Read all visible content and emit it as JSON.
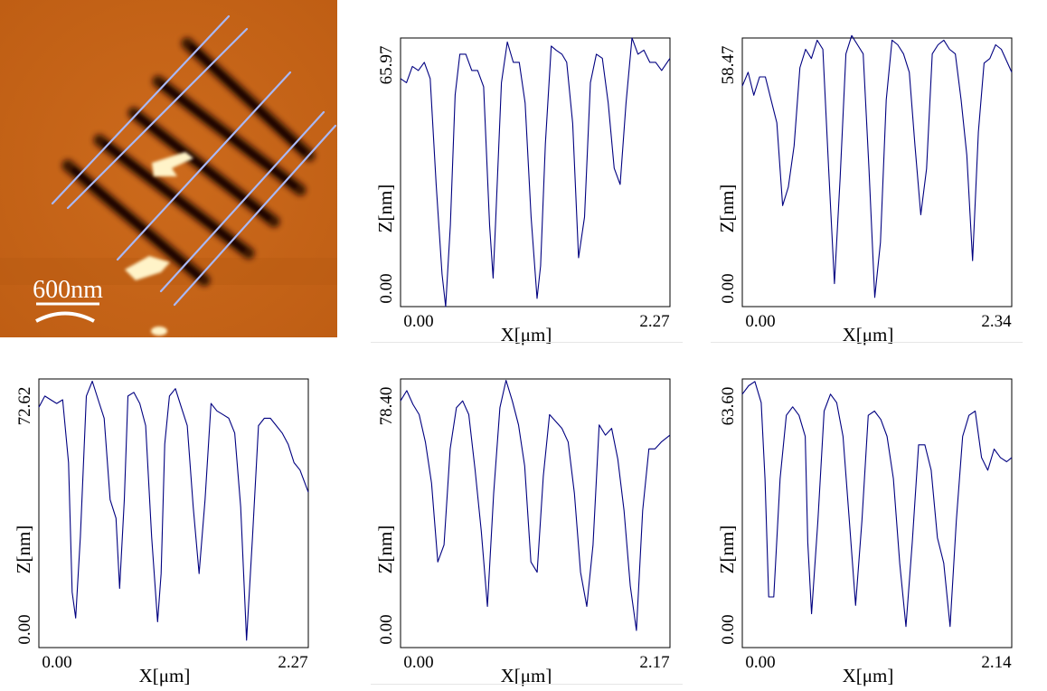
{
  "image": {
    "scale_bar_label": "600nm",
    "colors": {
      "substrate": "#c8641a",
      "trench": "#2a0a00",
      "particle": "#fff3c8",
      "scan_line": "#a9b8f5"
    }
  },
  "charts_style": {
    "line_color": "#000080",
    "frame_color": "#000000"
  },
  "chart_data": [
    {
      "type": "line",
      "title": "",
      "xlabel": "X[μm]",
      "ylabel": "Z[nm]",
      "xlim": [
        0,
        2.27
      ],
      "ylim": [
        0,
        65.97
      ],
      "x_tick_labels": [
        "0.00",
        "2.27"
      ],
      "y_tick_labels": [
        "0.00",
        "65.97"
      ],
      "series": [
        {
          "x": [
            0.0,
            0.05,
            0.1,
            0.15,
            0.2,
            0.25,
            0.3,
            0.35,
            0.38,
            0.42,
            0.46,
            0.5,
            0.55,
            0.6,
            0.65,
            0.7,
            0.75,
            0.78,
            0.8,
            0.85,
            0.9,
            0.95,
            1.0,
            1.05,
            1.1,
            1.15,
            1.18,
            1.22,
            1.27,
            1.31,
            1.36,
            1.4,
            1.45,
            1.5,
            1.55,
            1.6,
            1.65,
            1.7,
            1.75,
            1.8,
            1.85,
            1.9,
            1.95,
            2.0,
            2.05,
            2.1,
            2.15,
            2.2,
            2.27
          ],
          "y": [
            56,
            55,
            59,
            58,
            60,
            56,
            30,
            8,
            0,
            20,
            52,
            62,
            62,
            58,
            58,
            54,
            20,
            7,
            20,
            55,
            65,
            60,
            60,
            50,
            22,
            2,
            10,
            40,
            64,
            63,
            62,
            60,
            45,
            12,
            22,
            55,
            62,
            61,
            50,
            34,
            30,
            50,
            66,
            62,
            63,
            60,
            60,
            58,
            61
          ]
        }
      ]
    },
    {
      "type": "line",
      "title": "",
      "xlabel": "X[μm]",
      "ylabel": "Z[nm]",
      "xlim": [
        0,
        2.34
      ],
      "ylim": [
        0,
        58.47
      ],
      "x_tick_labels": [
        "0.00",
        "2.34"
      ],
      "y_tick_labels": [
        "0.00",
        "58.47"
      ],
      "series": [
        {
          "x": [
            0.0,
            0.05,
            0.1,
            0.15,
            0.2,
            0.25,
            0.3,
            0.35,
            0.4,
            0.45,
            0.5,
            0.55,
            0.6,
            0.65,
            0.7,
            0.75,
            0.8,
            0.85,
            0.9,
            0.95,
            1.0,
            1.05,
            1.1,
            1.15,
            1.2,
            1.25,
            1.3,
            1.35,
            1.4,
            1.45,
            1.5,
            1.55,
            1.6,
            1.65,
            1.7,
            1.75,
            1.8,
            1.85,
            1.9,
            1.95,
            2.0,
            2.05,
            2.1,
            2.15,
            2.2,
            2.25,
            2.34
          ],
          "y": [
            48,
            51,
            46,
            50,
            50,
            45,
            40,
            22,
            26,
            35,
            52,
            56,
            54,
            58,
            56,
            30,
            5,
            28,
            55,
            59,
            57,
            55,
            30,
            2,
            14,
            45,
            58,
            57,
            55,
            51,
            35,
            20,
            30,
            55,
            57,
            58,
            56,
            55,
            45,
            33,
            10,
            38,
            53,
            54,
            57,
            56,
            51
          ]
        }
      ]
    },
    {
      "type": "line",
      "title": "",
      "xlabel": "X[μm]",
      "ylabel": "Z[nm]",
      "xlim": [
        0,
        2.27
      ],
      "ylim": [
        0,
        72.62
      ],
      "x_tick_labels": [
        "0.00",
        "2.27"
      ],
      "y_tick_labels": [
        "0.00",
        "72.62"
      ],
      "series": [
        {
          "x": [
            0.0,
            0.05,
            0.1,
            0.15,
            0.2,
            0.25,
            0.28,
            0.31,
            0.35,
            0.4,
            0.45,
            0.5,
            0.55,
            0.6,
            0.65,
            0.68,
            0.72,
            0.75,
            0.8,
            0.85,
            0.9,
            0.95,
            1.0,
            1.03,
            1.06,
            1.1,
            1.15,
            1.2,
            1.25,
            1.3,
            1.35,
            1.4,
            1.45,
            1.5,
            1.55,
            1.6,
            1.65,
            1.7,
            1.75,
            1.8,
            1.85,
            1.9,
            1.95,
            2.0,
            2.05,
            2.1,
            2.15,
            2.2,
            2.27
          ],
          "y": [
            65,
            68,
            67,
            66,
            67,
            50,
            15,
            8,
            30,
            68,
            72,
            67,
            62,
            40,
            35,
            16,
            40,
            68,
            69,
            66,
            60,
            30,
            7,
            20,
            55,
            68,
            70,
            65,
            60,
            38,
            20,
            40,
            66,
            64,
            63,
            62,
            58,
            38,
            2,
            30,
            60,
            62,
            62,
            60,
            58,
            55,
            50,
            48,
            42
          ]
        }
      ]
    },
    {
      "type": "line",
      "title": "",
      "xlabel": "X[μm]",
      "ylabel": "Z[nm]",
      "xlim": [
        0,
        2.17
      ],
      "ylim": [
        0,
        78.4
      ],
      "x_tick_labels": [
        "0.00",
        "2.17"
      ],
      "y_tick_labels": [
        "0.00",
        "78.40"
      ],
      "series": [
        {
          "x": [
            0.0,
            0.05,
            0.1,
            0.15,
            0.2,
            0.25,
            0.3,
            0.35,
            0.4,
            0.45,
            0.5,
            0.55,
            0.6,
            0.65,
            0.7,
            0.75,
            0.8,
            0.85,
            0.9,
            0.95,
            1.0,
            1.05,
            1.1,
            1.15,
            1.2,
            1.25,
            1.3,
            1.35,
            1.4,
            1.45,
            1.5,
            1.55,
            1.6,
            1.65,
            1.7,
            1.75,
            1.8,
            1.85,
            1.9,
            1.95,
            2.0,
            2.05,
            2.1,
            2.17
          ],
          "y": [
            72,
            75,
            71,
            68,
            60,
            48,
            25,
            30,
            58,
            70,
            72,
            68,
            52,
            34,
            12,
            45,
            70,
            78,
            72,
            65,
            53,
            25,
            22,
            50,
            68,
            66,
            64,
            60,
            45,
            22,
            12,
            30,
            65,
            62,
            64,
            55,
            40,
            18,
            5,
            40,
            58,
            58,
            60,
            62
          ]
        }
      ]
    },
    {
      "type": "line",
      "title": "",
      "xlabel": "X[μm]",
      "ylabel": "Z[nm]",
      "xlim": [
        0,
        2.14
      ],
      "ylim": [
        0,
        63.6
      ],
      "x_tick_labels": [
        "0.00",
        "2.14"
      ],
      "y_tick_labels": [
        "0.00",
        "63.60"
      ],
      "series": [
        {
          "x": [
            0.0,
            0.05,
            0.1,
            0.15,
            0.18,
            0.21,
            0.25,
            0.3,
            0.35,
            0.4,
            0.45,
            0.5,
            0.52,
            0.55,
            0.6,
            0.65,
            0.7,
            0.75,
            0.8,
            0.85,
            0.9,
            0.95,
            1.0,
            1.05,
            1.1,
            1.15,
            1.2,
            1.25,
            1.3,
            1.35,
            1.4,
            1.45,
            1.5,
            1.55,
            1.6,
            1.65,
            1.7,
            1.75,
            1.8,
            1.85,
            1.9,
            1.95,
            2.0,
            2.05,
            2.1,
            2.14
          ],
          "y": [
            60,
            62,
            63,
            58,
            40,
            12,
            12,
            40,
            55,
            57,
            55,
            50,
            25,
            8,
            30,
            56,
            60,
            58,
            50,
            30,
            10,
            30,
            55,
            56,
            54,
            50,
            40,
            20,
            5,
            25,
            48,
            48,
            42,
            26,
            20,
            5,
            30,
            50,
            55,
            56,
            45,
            42,
            47,
            45,
            44,
            45
          ]
        }
      ]
    }
  ]
}
